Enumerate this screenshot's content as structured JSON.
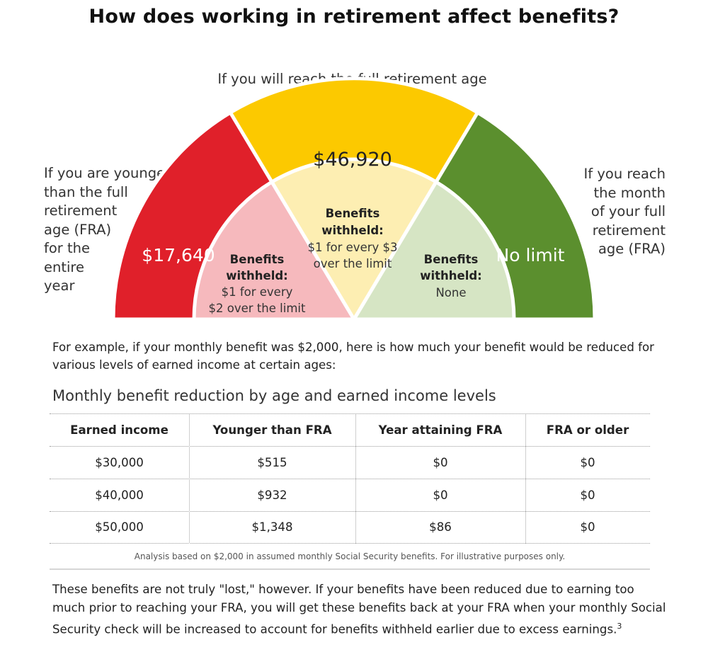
{
  "title": "How does working in retirement affect benefits?",
  "gauge": {
    "top_label": "If you will reach the full retirement age (FRA) in this year",
    "left_label": [
      "If you are younger",
      "than the full",
      "retirement",
      "age (FRA)",
      "for the",
      "entire",
      "year"
    ],
    "right_label": [
      "If you reach",
      "the month",
      "of your full",
      "retirement",
      "age (FRA)"
    ],
    "segments": [
      {
        "limit": "$17,640",
        "color_outer": "#e0202a",
        "color_inner": "#f6b9bd",
        "withheld_heading": [
          "Benefits",
          "withheld:"
        ],
        "withheld_text": [
          "$1 for every",
          "$2 over the limit"
        ]
      },
      {
        "limit": "$46,920",
        "color_outer": "#fcc900",
        "color_inner": "#fdeeb2",
        "withheld_heading": [
          "Benefits",
          "withheld:"
        ],
        "withheld_text": [
          "$1 for every $3",
          "over the limit"
        ]
      },
      {
        "limit": "No limit",
        "color_outer": "#5b8f2e",
        "color_inner": "#d6e5c4",
        "withheld_heading": [
          "Benefits",
          "withheld:"
        ],
        "withheld_text": [
          "None"
        ]
      }
    ]
  },
  "intro": "For example, if your monthly benefit was $2,000, here is how much your benefit would be reduced for various levels of earned income at certain ages:",
  "table": {
    "title": "Monthly benefit reduction by age and earned income levels",
    "headers": [
      "Earned income",
      "Younger than FRA",
      "Year attaining FRA",
      "FRA or older"
    ],
    "rows": [
      [
        "$30,000",
        "$515",
        "$0",
        "$0"
      ],
      [
        "$40,000",
        "$932",
        "$0",
        "$0"
      ],
      [
        "$50,000",
        "$1,348",
        "$86",
        "$0"
      ]
    ],
    "note": "Analysis based on $2,000 in assumed monthly Social Security benefits. For illustrative purposes only."
  },
  "outro": "These benefits are not truly \"lost,\" however. If your benefits have been reduced due to earning too much prior to reaching your FRA, you will get these benefits back at your FRA when your monthly Social Security check will be increased to account for benefits withheld earlier due to excess earnings.",
  "outro_footnote": "3"
}
